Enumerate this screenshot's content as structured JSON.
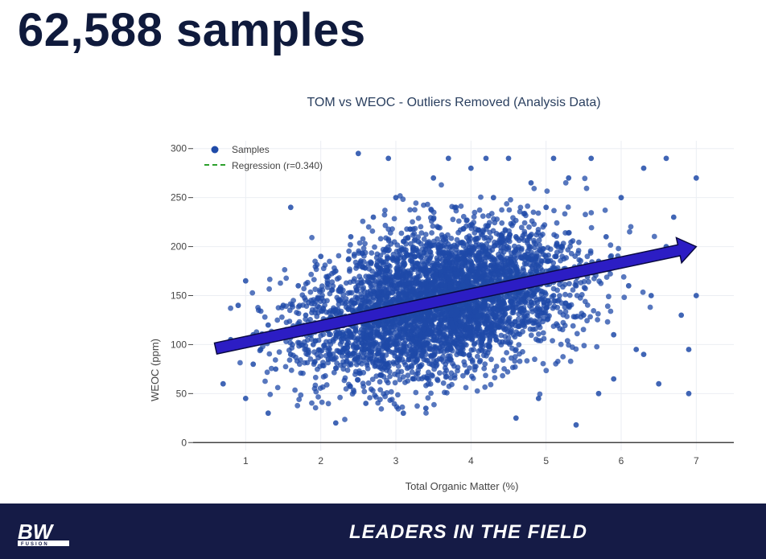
{
  "slide": {
    "title": "62,588 samples"
  },
  "footer": {
    "logo_text": "BW",
    "logo_subtext": "FUSION",
    "tagline": "LEADERS IN THE FIELD"
  },
  "colors": {
    "points": "#1f4aa8",
    "arrow": "#2c1dc4",
    "regression": "#2ca02c",
    "footer_bg": "#151b46",
    "title": "#0f1a3c"
  },
  "chart_data": {
    "type": "scatter",
    "title": "TOM vs WEOC - Outliers Removed (Analysis Data)",
    "xlabel": "Total Organic Matter (%)",
    "ylabel": "WEOC (ppm)",
    "xlim": [
      0.3,
      7.5
    ],
    "ylim": [
      -8,
      308
    ],
    "xticks": [
      1,
      2,
      3,
      4,
      5,
      6,
      7
    ],
    "yticks": [
      0,
      50,
      100,
      150,
      200,
      250,
      300
    ],
    "grid": true,
    "legend_position": "top-left",
    "legend": [
      {
        "label": "Samples",
        "kind": "marker"
      },
      {
        "label": "Regression (r=0.340)",
        "kind": "dashed-line"
      }
    ],
    "regression": {
      "r": 0.34,
      "x": [
        0.6,
        7.0
      ],
      "y": [
        96,
        200
      ]
    },
    "series": [
      {
        "name": "Samples",
        "note_visible_points": "dense cloud of ~62,588 points",
        "x": [
          0.7,
          0.8,
          0.9,
          1.0,
          1.0,
          1.1,
          1.2,
          1.3,
          1.4,
          1.5,
          1.6,
          1.7,
          1.8,
          1.9,
          2.0,
          2.1,
          2.2,
          2.3,
          2.4,
          2.5,
          2.6,
          2.7,
          2.8,
          2.9,
          3.0,
          3.1,
          3.2,
          3.3,
          3.4,
          3.5,
          3.6,
          3.7,
          3.8,
          3.9,
          4.0,
          4.1,
          4.2,
          4.3,
          4.4,
          4.5,
          4.6,
          4.7,
          4.8,
          4.9,
          5.0,
          5.1,
          5.2,
          5.3,
          5.4,
          5.5,
          5.6,
          5.7,
          5.8,
          5.9,
          6.0,
          6.1,
          6.2,
          6.3,
          6.4,
          6.5,
          6.6,
          6.7,
          6.8,
          6.9,
          7.0,
          7.0,
          2.5,
          2.6,
          5.4,
          3.1,
          4.6,
          1.3,
          5.9,
          6.3,
          6.9,
          1.1,
          2.9,
          4.2,
          3.7,
          5.1,
          6.6,
          1.6,
          2.2,
          4.9,
          3.4,
          5.7
        ],
        "y": [
          60,
          105,
          140,
          165,
          45,
          110,
          95,
          120,
          75,
          140,
          90,
          160,
          130,
          100,
          190,
          85,
          175,
          110,
          210,
          160,
          95,
          230,
          145,
          115,
          250,
          180,
          120,
          205,
          140,
          270,
          175,
          100,
          240,
          160,
          280,
          130,
          195,
          250,
          150,
          290,
          210,
          120,
          265,
          180,
          240,
          150,
          200,
          270,
          160,
          130,
          290,
          185,
          210,
          110,
          250,
          160,
          95,
          280,
          150,
          60,
          200,
          230,
          130,
          95,
          270,
          150,
          295,
          40,
          18,
          30,
          25,
          30,
          65,
          90,
          50,
          80,
          290,
          290,
          290,
          290,
          290,
          240,
          20,
          45,
          35,
          50
        ]
      }
    ]
  }
}
